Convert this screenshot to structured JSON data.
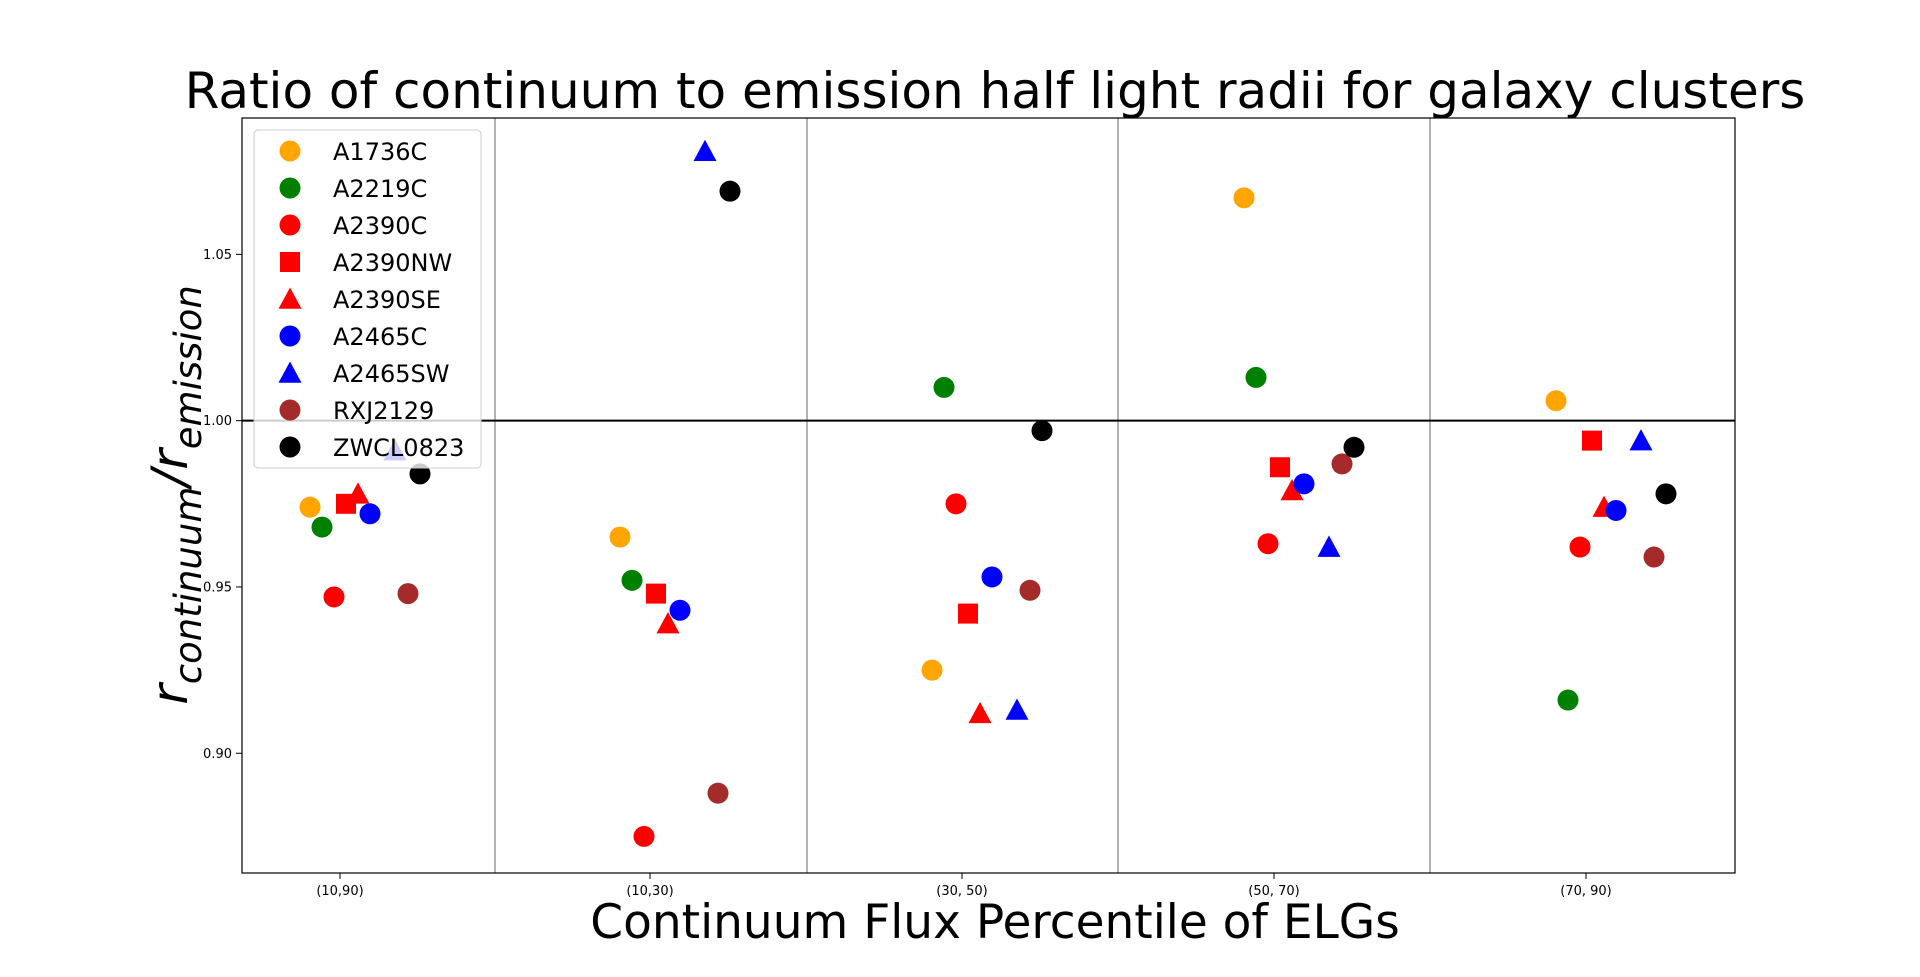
{
  "chart_data": {
    "type": "scatter",
    "title": "Ratio of continuum to emission half light radii for galaxy clusters",
    "xlabel": "Continuum Flux Percentile of ELGs",
    "ylabel": {
      "main": "r",
      "sub1": "continuum",
      "slash": "/r",
      "sub2": "emission"
    },
    "categories": [
      "(10,90)",
      "(10,30)",
      "(30, 50)",
      "(50, 70)",
      "(70, 90)"
    ],
    "ylim": [
      0.864,
      1.091
    ],
    "yticks": [
      {
        "value": 0.9,
        "label": "0.90"
      },
      {
        "value": 0.95,
        "label": "0.95"
      },
      {
        "value": 1.0,
        "label": "1.00"
      },
      {
        "value": 1.05,
        "label": "1.05"
      }
    ],
    "reference_line": 1.0,
    "grid": false,
    "legend_position": "top-left",
    "series": [
      {
        "name": "A1736C",
        "color": "#ffa500",
        "marker": "circle",
        "values": [
          0.974,
          0.965,
          0.925,
          1.067,
          1.006
        ]
      },
      {
        "name": "A2219C",
        "color": "#008000",
        "marker": "circle",
        "values": [
          0.968,
          0.952,
          1.01,
          1.013,
          0.916
        ]
      },
      {
        "name": "A2390C",
        "color": "#ff0000",
        "marker": "circle",
        "values": [
          0.947,
          0.875,
          0.975,
          0.963,
          0.962
        ]
      },
      {
        "name": "A2390NW",
        "color": "#ff0000",
        "marker": "square",
        "values": [
          0.975,
          0.948,
          0.942,
          0.986,
          0.994
        ]
      },
      {
        "name": "A2390SE",
        "color": "#ff0000",
        "marker": "triangle",
        "values": [
          0.978,
          0.939,
          0.912,
          0.979,
          0.974
        ]
      },
      {
        "name": "A2465C",
        "color": "#0000ff",
        "marker": "circle",
        "values": [
          0.972,
          0.943,
          0.953,
          0.981,
          0.973
        ]
      },
      {
        "name": "A2465SW",
        "color": "#0000ff",
        "marker": "triangle",
        "values": [
          0.991,
          1.081,
          0.913,
          0.962,
          0.994
        ]
      },
      {
        "name": "RXJ2129",
        "color": "#a52a2a",
        "marker": "circle",
        "values": [
          0.948,
          0.888,
          0.949,
          0.987,
          0.959
        ]
      },
      {
        "name": "ZWCL0823",
        "color": "#000000",
        "marker": "circle",
        "values": [
          0.984,
          1.069,
          0.997,
          0.992,
          0.978
        ]
      }
    ]
  }
}
